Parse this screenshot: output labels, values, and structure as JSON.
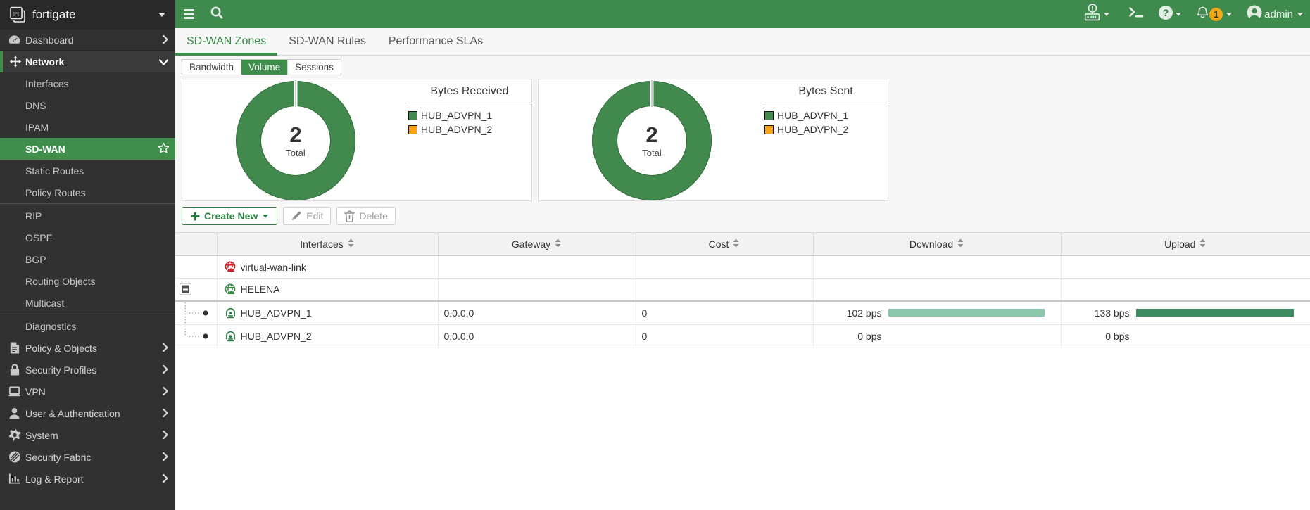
{
  "colors": {
    "topbar_green": "#3e8b4d",
    "selected_green": "#3f8e4c",
    "donut_green": "#42894e",
    "legend_orange": "#f9a30f",
    "download_bar": "#8cc7ab",
    "upload_bar": "#3e8b62",
    "sidebar_bg": "#313131"
  },
  "sidebar": {
    "logo_label": "fortigate",
    "items": [
      {
        "label": "Dashboard",
        "type": "top",
        "icon": "gauge-icon",
        "chevron": "right"
      },
      {
        "label": "Network",
        "type": "top",
        "icon": "move-icon",
        "chevron": "down",
        "section_active": true
      },
      {
        "label": "Interfaces",
        "type": "sub"
      },
      {
        "label": "DNS",
        "type": "sub"
      },
      {
        "label": "IPAM",
        "type": "sub"
      },
      {
        "label": "SD-WAN",
        "type": "sub",
        "selected": true,
        "star": true
      },
      {
        "label": "Static Routes",
        "type": "sub"
      },
      {
        "label": "Policy Routes",
        "type": "sub"
      },
      {
        "type": "divider"
      },
      {
        "label": "RIP",
        "type": "sub"
      },
      {
        "label": "OSPF",
        "type": "sub"
      },
      {
        "label": "BGP",
        "type": "sub"
      },
      {
        "label": "Routing Objects",
        "type": "sub"
      },
      {
        "label": "Multicast",
        "type": "sub"
      },
      {
        "type": "divider"
      },
      {
        "label": "Diagnostics",
        "type": "sub"
      },
      {
        "label": "Policy & Objects",
        "type": "top",
        "icon": "policy-icon",
        "chevron": "right"
      },
      {
        "label": "Security Profiles",
        "type": "top",
        "icon": "lock-icon",
        "chevron": "right"
      },
      {
        "label": "VPN",
        "type": "top",
        "icon": "laptop-icon",
        "chevron": "right"
      },
      {
        "label": "User & Authentication",
        "type": "top",
        "icon": "user-icon",
        "chevron": "right"
      },
      {
        "label": "System",
        "type": "top",
        "icon": "gear-icon",
        "chevron": "right"
      },
      {
        "label": "Security Fabric",
        "type": "top",
        "icon": "fabric-icon",
        "chevron": "right"
      },
      {
        "label": "Log & Report",
        "type": "top",
        "icon": "report-icon",
        "chevron": "right"
      }
    ]
  },
  "topbar": {
    "notification_count": "1",
    "admin_label": "admin"
  },
  "main": {
    "tabs": [
      {
        "label": "SD-WAN Zones",
        "active": true
      },
      {
        "label": "SD-WAN Rules"
      },
      {
        "label": "Performance SLAs"
      }
    ],
    "subtabs": [
      {
        "label": "Bandwidth"
      },
      {
        "label": "Volume",
        "active": true
      },
      {
        "label": "Sessions"
      }
    ],
    "toolbar": {
      "create_label": "Create New",
      "edit_label": "Edit",
      "delete_label": "Delete"
    },
    "table": {
      "columns": [
        "Interfaces",
        "Gateway",
        "Cost",
        "Download",
        "Upload"
      ],
      "rows": [
        {
          "name": "virtual-wan-link",
          "icon": "globe-red-icon",
          "level": 0,
          "gateway": "",
          "cost": "",
          "download": "",
          "upload": ""
        },
        {
          "name": "HELENA",
          "icon": "globe-green-icon",
          "level": 0,
          "expanded": true,
          "group_end": true,
          "gateway": "",
          "cost": "",
          "download": "",
          "upload": ""
        },
        {
          "name": "HUB_ADVPN_1",
          "icon": "tunnel-icon",
          "level": 1,
          "gateway": "0.0.0.0",
          "cost": "0",
          "download": "102 bps",
          "download_pct": 100,
          "upload": "133 bps",
          "upload_pct": 100
        },
        {
          "name": "HUB_ADVPN_2",
          "icon": "tunnel-icon",
          "level": 1,
          "last_child": true,
          "gateway": "0.0.0.0",
          "cost": "0",
          "download": "0 bps",
          "download_pct": 0,
          "upload": "0 bps",
          "upload_pct": 0
        }
      ]
    }
  },
  "chart_data": [
    {
      "type": "pie",
      "title": "Bytes Received",
      "center_value": "2",
      "center_label": "Total",
      "legend_position": "right",
      "series": [
        {
          "name": "HUB_ADVPN_1",
          "value": 99.5,
          "color": "#42894e"
        },
        {
          "name": "HUB_ADVPN_2",
          "value": 0.5,
          "color": "#f9a30f"
        }
      ]
    },
    {
      "type": "pie",
      "title": "Bytes Sent",
      "center_value": "2",
      "center_label": "Total",
      "legend_position": "right",
      "series": [
        {
          "name": "HUB_ADVPN_1",
          "value": 99.5,
          "color": "#42894e"
        },
        {
          "name": "HUB_ADVPN_2",
          "value": 0.5,
          "color": "#f9a30f"
        }
      ]
    }
  ]
}
